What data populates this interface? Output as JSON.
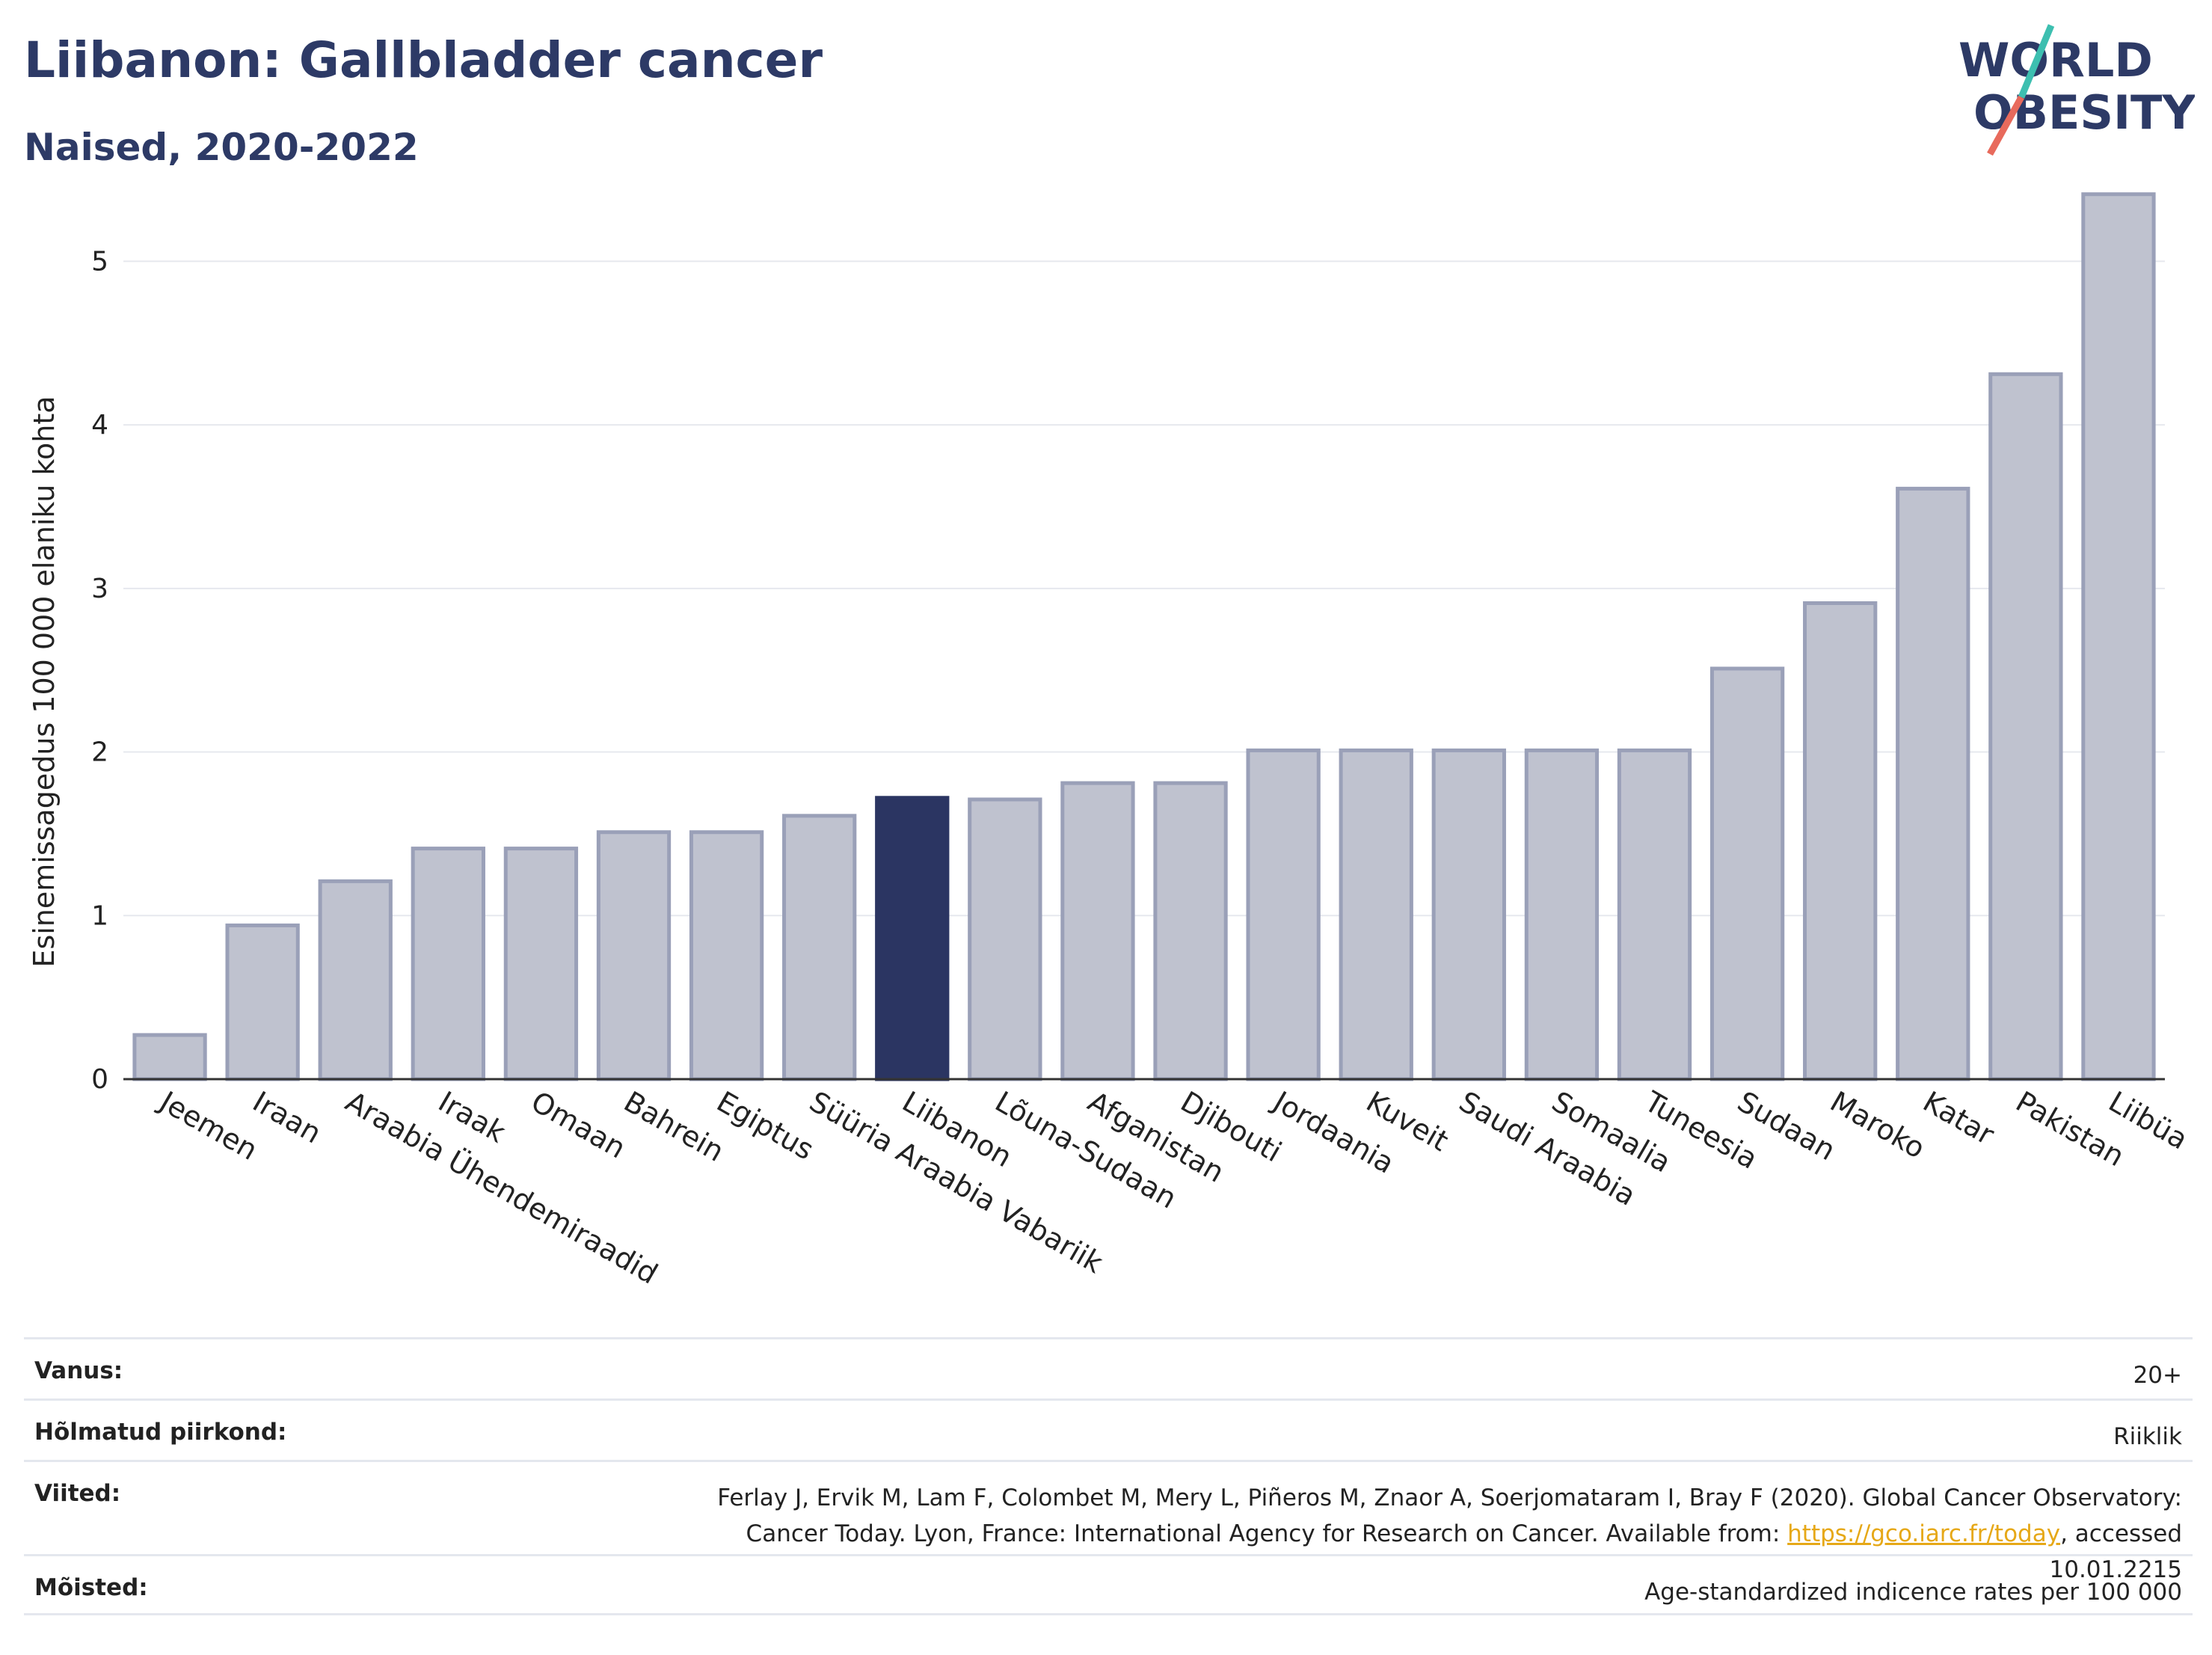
{
  "header": {
    "title": "Liibanon: Gallbladder cancer",
    "subtitle": "Naised, 2020-2022"
  },
  "logo": {
    "line1": "WORLD",
    "line2": "OBESITY",
    "slash_colors": [
      "#3dbfb0",
      "#e86a5c"
    ],
    "text_color": "#2d3a66"
  },
  "chart_data": {
    "type": "bar",
    "ylabel": "Esinemissagedus 100 000 elaniku kohta",
    "ylim": [
      0,
      5.5
    ],
    "yticks": [
      0,
      1,
      2,
      3,
      4,
      5
    ],
    "grid": true,
    "highlight": "Liibanon",
    "colors": {
      "bar": "#bfc2cf",
      "bar_edge": "#9aa0b8",
      "highlight": "#2b3562",
      "grid": "#e6e8ee",
      "axis": "#333333"
    },
    "categories": [
      "Jeemen",
      "Iraan",
      "Araabia Ühendemiraadid",
      "Iraak",
      "Omaan",
      "Bahrein",
      "Egiptus",
      "Süüria Araabia Vabariik",
      "Liibanon",
      "Lõuna-Sudaan",
      "Afganistan",
      "Djibouti",
      "Jordaania",
      "Kuveit",
      "Saudi Araabia",
      "Somaalia",
      "Tuneesia",
      "Sudaan",
      "Maroko",
      "Katar",
      "Pakistan",
      "Liibüa"
    ],
    "values": [
      0.27,
      0.94,
      1.21,
      1.41,
      1.41,
      1.51,
      1.51,
      1.61,
      1.72,
      1.71,
      1.81,
      1.81,
      2.01,
      2.01,
      2.01,
      2.01,
      2.01,
      2.51,
      2.91,
      3.61,
      4.31,
      5.41
    ]
  },
  "meta": [
    {
      "label": "Vanus:",
      "value": "20+"
    },
    {
      "label": "Hõlmatud piirkond:",
      "value": "Riiklik"
    },
    {
      "label": "Viited:",
      "value_pre": "Ferlay J, Ervik M, Lam F, Colombet M, Mery L, Piñeros M, Znaor A, Soerjomataram I, Bray F (2020). Global Cancer Observatory: Cancer Today. Lyon, France: International Agency for Research on Cancer. Available from: ",
      "link": "https://gco.iarc.fr/today",
      "value_post": ", accessed 10.01.2215"
    },
    {
      "label": "Mõisted:",
      "value": "Age-standardized indicence rates per 100 000"
    }
  ]
}
